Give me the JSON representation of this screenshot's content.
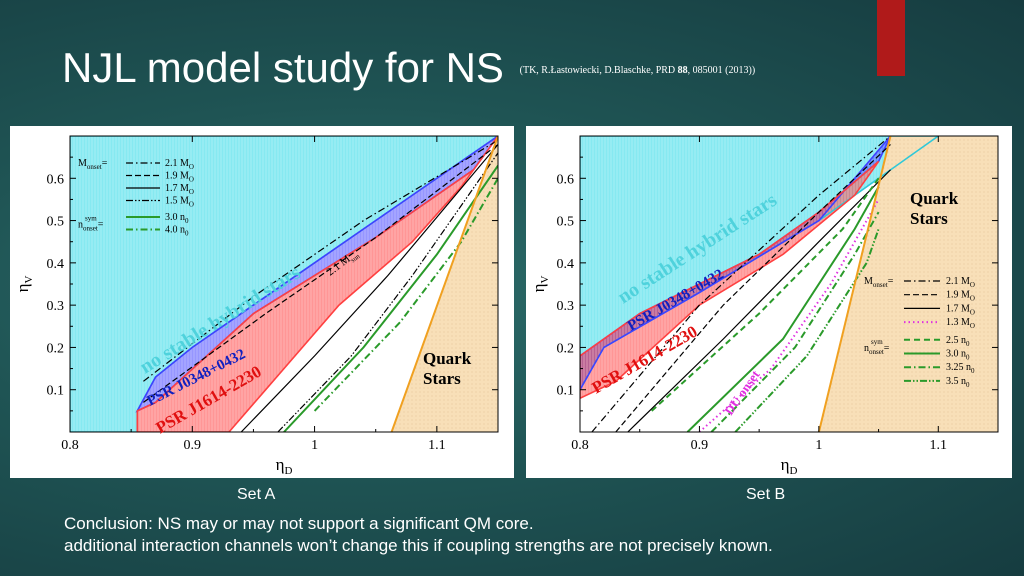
{
  "slide": {
    "title": "NJL model study for NS",
    "citation_prefix": "(TK, R.Łastowiecki, D.Blaschke, PRD ",
    "citation_volume": "88",
    "citation_suffix": ", 085001 (2013))",
    "set_a_label": "Set A",
    "set_b_label": "Set B",
    "conclusion_line1": "Conclusion: NS may or may not support a significant QM core.",
    "conclusion_line2": "additional interaction channels won’t change this if coupling strengths are not precisely known.",
    "accent_color": "#b01a1a"
  },
  "chart_data": [
    {
      "type": "area",
      "name": "Set A",
      "xlabel": "η",
      "xlabel_sub": "D",
      "ylabel": "η",
      "ylabel_sub": "V",
      "xlim": [
        0.8,
        1.15
      ],
      "ylim": [
        0,
        0.7
      ],
      "xticks": [
        "0.8",
        "0.9",
        "1",
        "1.1"
      ],
      "yticks": [
        "0.1",
        "0.2",
        "0.3",
        "0.4",
        "0.5",
        "0.6"
      ],
      "regions": [
        {
          "label": "no stable hybrid stars",
          "color": "#7fe8f0",
          "points": [
            [
              0.855,
              0.0
            ],
            [
              0.855,
              0.05
            ],
            [
              0.87,
              0.13
            ],
            [
              0.9,
              0.2
            ],
            [
              1.06,
              0.52
            ],
            [
              1.15,
              0.7
            ],
            [
              0.8,
              0.7
            ],
            [
              0.8,
              0.0
            ]
          ]
        },
        {
          "label": "PSR J0348+0432",
          "color": "#4040ff",
          "points": [
            [
              0.855,
              0.05
            ],
            [
              0.87,
              0.13
            ],
            [
              0.9,
              0.2
            ],
            [
              1.06,
              0.52
            ],
            [
              1.15,
              0.7
            ],
            [
              1.13,
              0.62
            ],
            [
              1.05,
              0.46
            ],
            [
              0.95,
              0.28
            ],
            [
              0.87,
              0.07
            ]
          ]
        },
        {
          "label": "PSR J1614-2230",
          "color": "#ff4040",
          "points": [
            [
              0.855,
              0.0
            ],
            [
              0.855,
              0.05
            ],
            [
              0.87,
              0.07
            ],
            [
              0.95,
              0.28
            ],
            [
              1.05,
              0.46
            ],
            [
              1.13,
              0.62
            ],
            [
              1.15,
              0.7
            ],
            [
              1.12,
              0.58
            ],
            [
              1.08,
              0.45
            ],
            [
              1.02,
              0.3
            ],
            [
              0.96,
              0.1
            ],
            [
              0.93,
              0.0
            ]
          ]
        },
        {
          "label": "Quark Stars",
          "color": "#f8dfb8",
          "points": [
            [
              1.063,
              0.0
            ],
            [
              1.15,
              0.7
            ],
            [
              1.15,
              0.0
            ]
          ]
        }
      ],
      "legend": {
        "monset_label": "M",
        "monset_sub": "onset",
        "nonset_label": "n",
        "nonset_sup": "sym",
        "nonset_sub": "onset",
        "entries": [
          "2.1 M",
          "1.9 M",
          "1.7 M",
          "1.5 M",
          "3.0 n",
          "4.0 n"
        ],
        "entry_subs": [
          "O",
          "O",
          "O",
          "O",
          "0",
          "0"
        ],
        "styles": [
          "dashdot",
          "dashed",
          "solid",
          "dashdotdot",
          "green-solid",
          "green-dashdot"
        ]
      },
      "series": [
        {
          "name": "2.1 M",
          "style": "dashdot",
          "color": "#000000",
          "points": [
            [
              0.86,
              0.12
            ],
            [
              0.95,
              0.32
            ],
            [
              1.04,
              0.5
            ],
            [
              1.15,
              0.69
            ]
          ]
        },
        {
          "name": "1.9 M",
          "style": "dashed",
          "color": "#000000",
          "points": [
            [
              0.86,
              0.07
            ],
            [
              0.96,
              0.28
            ],
            [
              1.05,
              0.46
            ],
            [
              1.15,
              0.68
            ]
          ]
        },
        {
          "name": "1.7 M",
          "style": "solid",
          "color": "#000000",
          "points": [
            [
              0.94,
              0.0
            ],
            [
              1.0,
              0.18
            ],
            [
              1.06,
              0.37
            ],
            [
              1.15,
              0.68
            ]
          ]
        },
        {
          "name": "1.5 M",
          "style": "dashdotdot",
          "color": "#000000",
          "points": [
            [
              0.97,
              0.0
            ],
            [
              1.03,
              0.18
            ],
            [
              1.08,
              0.37
            ],
            [
              1.15,
              0.66
            ]
          ]
        },
        {
          "name": "3.0 n",
          "style": "green-solid",
          "color": "#2a9a2a",
          "points": [
            [
              0.975,
              0.0
            ],
            [
              1.04,
              0.2
            ],
            [
              1.1,
              0.42
            ],
            [
              1.15,
              0.63
            ]
          ]
        },
        {
          "name": "4.0 n",
          "style": "green-dashdot",
          "color": "#2a9a2a",
          "points": [
            [
              1.0,
              0.05
            ],
            [
              1.07,
              0.26
            ],
            [
              1.12,
              0.45
            ],
            [
              1.15,
              0.6
            ]
          ]
        },
        {
          "name": "Quark boundary",
          "style": "orange",
          "color": "#f0a020",
          "points": [
            [
              1.063,
              0.0
            ],
            [
              1.15,
              0.7
            ]
          ]
        }
      ],
      "annotations": [
        "no stable hybrid stars",
        "PSR J0348+0432",
        "PSR J1614-2230",
        "Quark",
        "Stars",
        "2.1 M"
      ],
      "annotation_subs": {
        "2.1 M": "sun"
      }
    },
    {
      "type": "area",
      "name": "Set B",
      "xlabel": "η",
      "xlabel_sub": "D",
      "ylabel": "η",
      "ylabel_sub": "V",
      "xlim": [
        0.8,
        1.15
      ],
      "ylim": [
        0,
        0.7
      ],
      "xticks": [
        "0.8",
        "0.9",
        "1",
        "1.1"
      ],
      "yticks": [
        "0.1",
        "0.2",
        "0.3",
        "0.4",
        "0.5",
        "0.6"
      ],
      "regions": [
        {
          "label": "no stable hybrid stars",
          "color": "#7fe8f0",
          "points": [
            [
              0.8,
              0.1
            ],
            [
              0.82,
              0.2
            ],
            [
              0.9,
              0.33
            ],
            [
              1.0,
              0.5
            ],
            [
              1.1,
              0.7
            ],
            [
              0.8,
              0.7
            ]
          ]
        },
        {
          "label": "PSR J0348+0432",
          "color": "#4040ff",
          "points": [
            [
              0.8,
              0.1
            ],
            [
              0.82,
              0.2
            ],
            [
              0.9,
              0.33
            ],
            [
              1.0,
              0.5
            ],
            [
              1.06,
              0.7
            ],
            [
              1.05,
              0.64
            ],
            [
              1.0,
              0.52
            ],
            [
              0.95,
              0.42
            ],
            [
              0.85,
              0.28
            ],
            [
              0.8,
              0.18
            ]
          ]
        },
        {
          "label": "PSR J1614-2230",
          "color": "#ff4040",
          "points": [
            [
              0.8,
              0.08
            ],
            [
              0.8,
              0.18
            ],
            [
              0.85,
              0.28
            ],
            [
              0.95,
              0.42
            ],
            [
              1.0,
              0.52
            ],
            [
              1.05,
              0.64
            ],
            [
              1.03,
              0.56
            ],
            [
              0.97,
              0.42
            ],
            [
              0.9,
              0.3
            ],
            [
              0.83,
              0.12
            ]
          ]
        },
        {
          "label": "Quark Stars",
          "color": "#f8dfb8",
          "points": [
            [
              1.0,
              0.0
            ],
            [
              1.06,
              0.7
            ],
            [
              1.15,
              0.7
            ],
            [
              1.15,
              0.0
            ]
          ]
        }
      ],
      "legend": {
        "monset_label": "M",
        "monset_sub": "onset",
        "nonset_label": "n",
        "nonset_sup": "sym",
        "nonset_sub": "onset",
        "entries": [
          "2.1 M",
          "1.9 M",
          "1.7 M",
          "1.3 M",
          "2.5 n",
          "3.0 n",
          "3.25 n",
          "3.5 n"
        ],
        "entry_subs": [
          "O",
          "O",
          "O",
          "O",
          "0",
          "0",
          "0",
          "0"
        ],
        "styles": [
          "dashdot",
          "dashed",
          "solid",
          "magenta-dotted",
          "green-dashed",
          "green-solid",
          "green-dashdot",
          "green-dashdotdot"
        ]
      },
      "series": [
        {
          "name": "2.1 M",
          "style": "dashdot",
          "color": "#000000",
          "points": [
            [
              0.81,
              0.0
            ],
            [
              0.9,
              0.3
            ],
            [
              1.0,
              0.56
            ],
            [
              1.06,
              0.7
            ]
          ]
        },
        {
          "name": "1.9 M",
          "style": "dashed",
          "color": "#000000",
          "points": [
            [
              0.83,
              0.0
            ],
            [
              0.92,
              0.3
            ],
            [
              1.0,
              0.52
            ],
            [
              1.06,
              0.68
            ]
          ]
        },
        {
          "name": "1.7 M",
          "style": "solid",
          "color": "#000000",
          "points": [
            [
              0.84,
              0.0
            ],
            [
              0.92,
              0.22
            ],
            [
              1.0,
              0.45
            ],
            [
              1.06,
              0.62
            ]
          ]
        },
        {
          "name": "1.3 M",
          "style": "magenta-dotted",
          "color": "#e030e0",
          "points": [
            [
              0.9,
              0.0
            ],
            [
              0.96,
              0.15
            ],
            [
              1.01,
              0.35
            ],
            [
              1.05,
              0.55
            ]
          ]
        },
        {
          "name": "2.5 n",
          "style": "green-dashed",
          "color": "#2a9a2a",
          "points": [
            [
              0.86,
              0.05
            ],
            [
              0.95,
              0.28
            ],
            [
              1.02,
              0.48
            ],
            [
              1.05,
              0.6
            ]
          ]
        },
        {
          "name": "3.0 n",
          "style": "green-solid",
          "color": "#2a9a2a",
          "points": [
            [
              0.89,
              0.0
            ],
            [
              0.97,
              0.22
            ],
            [
              1.03,
              0.48
            ],
            [
              1.05,
              0.58
            ]
          ]
        },
        {
          "name": "3.25 n",
          "style": "green-dashdot",
          "color": "#2a9a2a",
          "points": [
            [
              0.91,
              0.0
            ],
            [
              0.98,
              0.2
            ],
            [
              1.03,
              0.42
            ],
            [
              1.05,
              0.52
            ]
          ]
        },
        {
          "name": "3.5 n",
          "style": "green-dashdotdot",
          "color": "#2a9a2a",
          "points": [
            [
              0.93,
              0.0
            ],
            [
              0.99,
              0.18
            ],
            [
              1.04,
              0.4
            ],
            [
              1.05,
              0.48
            ]
          ]
        },
        {
          "name": "Quark boundary",
          "style": "orange",
          "color": "#f0a020",
          "points": [
            [
              1.0,
              0.0
            ],
            [
              1.06,
              0.7
            ]
          ]
        }
      ],
      "annotations": [
        "no stable hybrid stars",
        "PSR J0348+0432",
        "PSR J1614-2230",
        "DU onset",
        "Quark",
        "Stars"
      ]
    }
  ]
}
